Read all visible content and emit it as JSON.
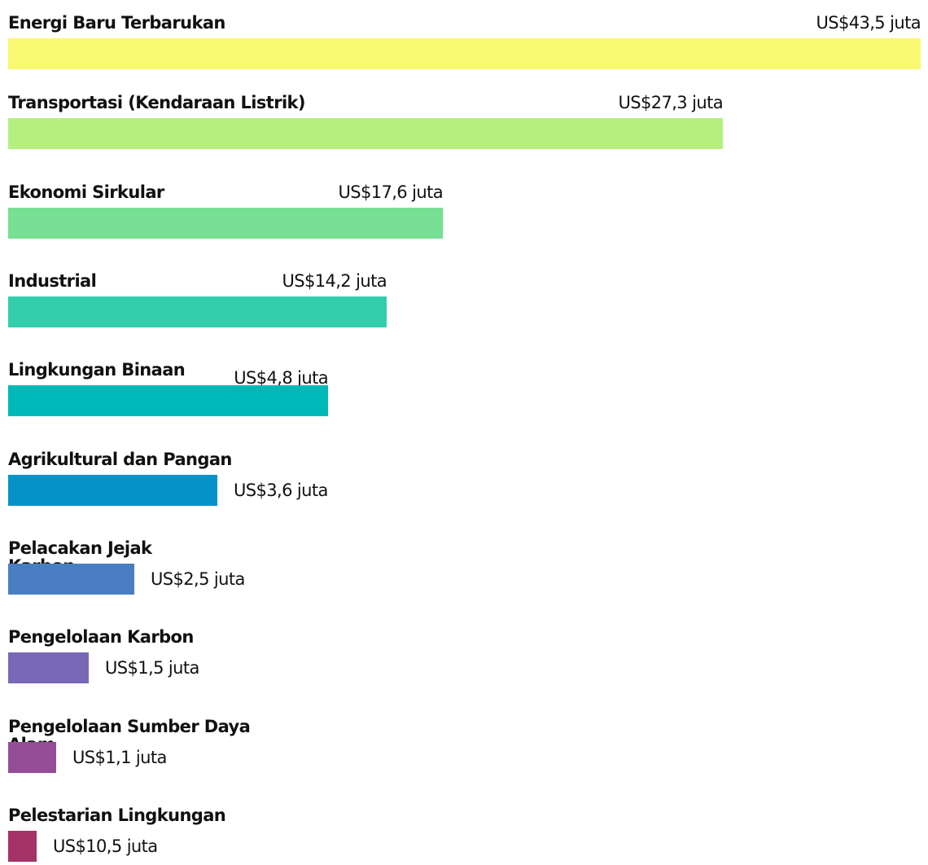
{
  "items": [
    {
      "label": "Energi Baru Terbarukan",
      "amount": "US$43,5 juta"
    },
    {
      "label": "Transportasi (Kendaraan Listrik)",
      "amount": "US$27,3 juta"
    },
    {
      "label": "Ekonomi Sirkular",
      "amount": "US$17,6 juta"
    },
    {
      "label": "Industrial",
      "amount": "US$14,2 juta"
    },
    {
      "label": "Lingkungan Binaan",
      "amount": "US$4,8 juta"
    },
    {
      "label": "Agrikultural dan Pangan",
      "amount": "US$3,6 juta"
    },
    {
      "label": "Pelacakan Jejak Karbon",
      "amount": "US$2,5 juta"
    },
    {
      "label": "Pengelolaan Karbon",
      "amount": "US$1,5 juta"
    },
    {
      "label": "Pengelolaan Sumber Daya Alam",
      "amount": "US$1,1 juta"
    },
    {
      "label": "Pelestarian Lingkungan",
      "amount": "US$10,5 juta"
    }
  ]
}
